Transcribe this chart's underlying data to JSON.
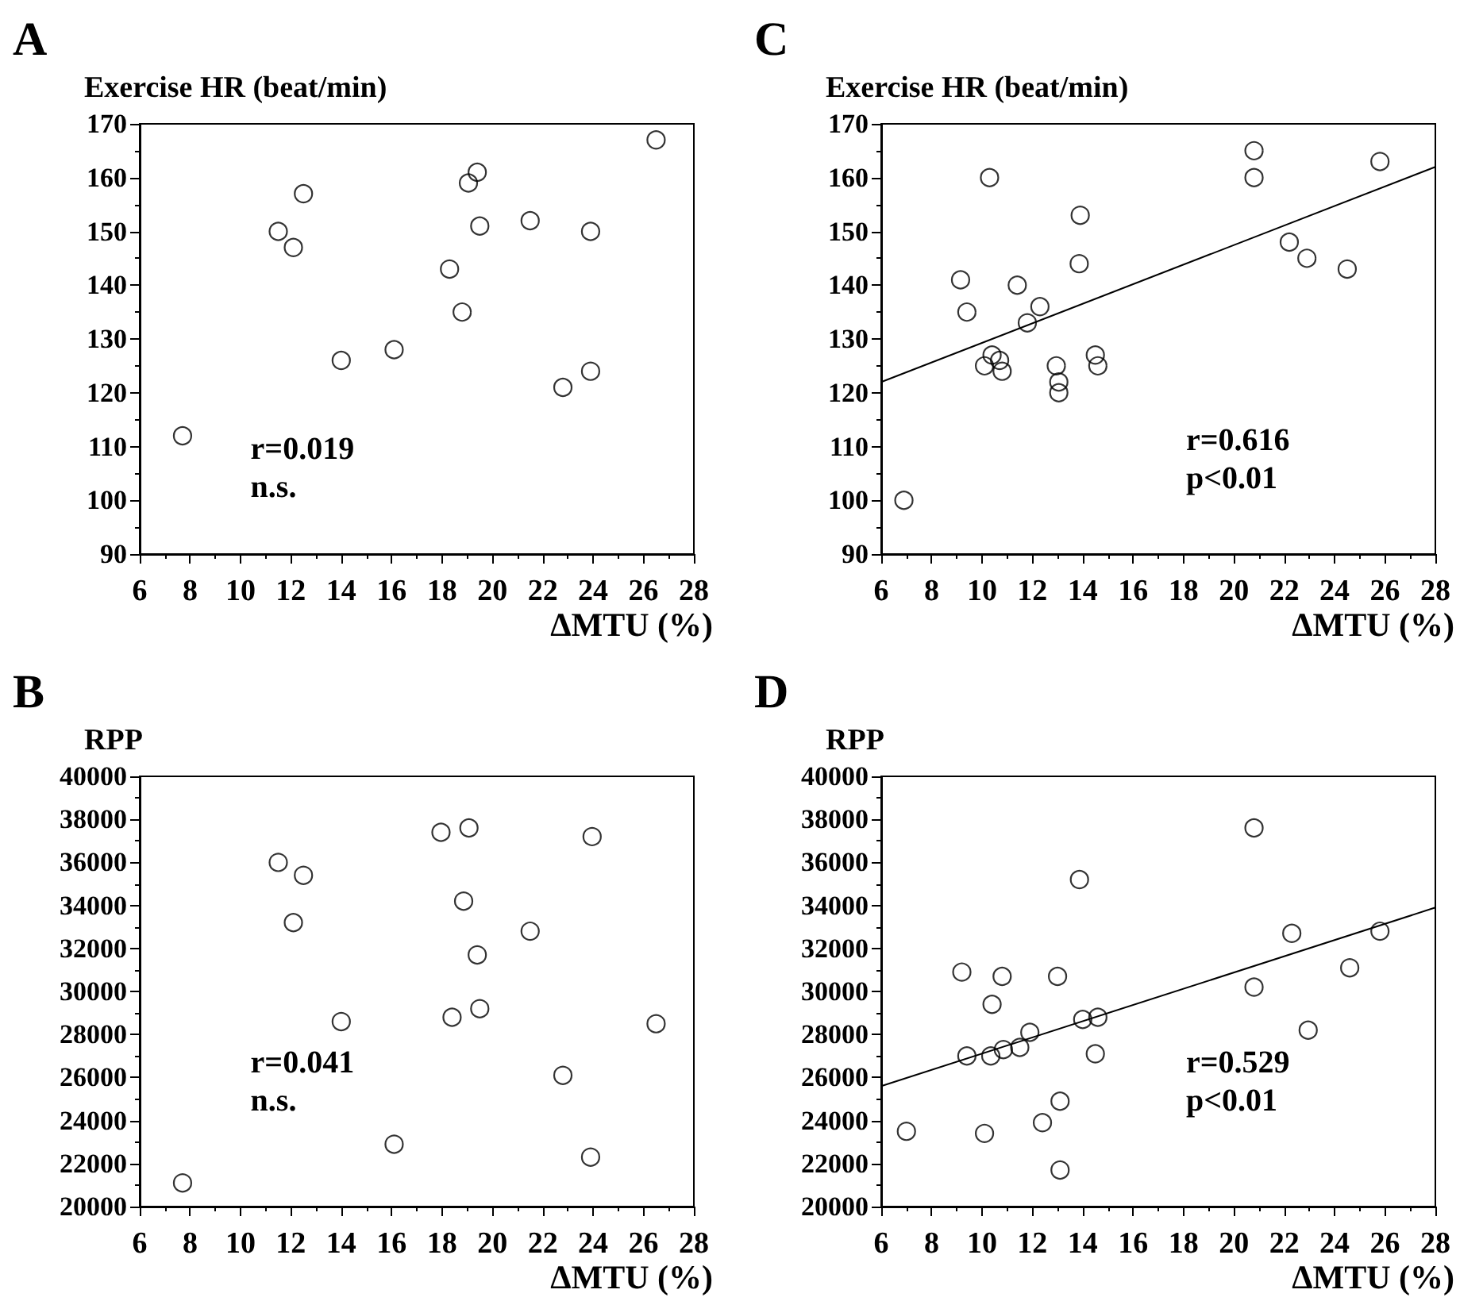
{
  "chart_data": [
    {
      "type": "scatter",
      "title": "A",
      "ylabel": "Exercise HR (beat/min)",
      "xlabel": "ΔMTU (%)",
      "xlim": [
        6,
        28
      ],
      "xticks": [
        6,
        8,
        10,
        12,
        14,
        16,
        18,
        20,
        22,
        24,
        26,
        28
      ],
      "ylim": [
        90,
        170
      ],
      "yticks": [
        90,
        100,
        110,
        120,
        130,
        140,
        150,
        160,
        170
      ],
      "grid": false,
      "annotations": [
        "r=0.019",
        "n.s."
      ],
      "series": [
        {
          "color": "#000000",
          "marker": "circle",
          "x": [
            7.7,
            11.5,
            12.1,
            12.5,
            14.0,
            16.1,
            18.3,
            18.8,
            19.05,
            19.4,
            19.5,
            21.5,
            22.8,
            23.9,
            23.9,
            26.5
          ],
          "values": [
            112,
            150,
            147,
            157,
            126,
            128,
            143,
            135,
            159,
            161,
            151,
            152,
            121,
            124,
            150,
            167
          ]
        }
      ]
    },
    {
      "type": "scatter",
      "title": "C",
      "ylabel": "Exercise HR (beat/min)",
      "xlabel": "ΔMTU (%)",
      "xlim": [
        6,
        28
      ],
      "xticks": [
        6,
        8,
        10,
        12,
        14,
        16,
        18,
        20,
        22,
        24,
        26,
        28
      ],
      "ylim": [
        90,
        170
      ],
      "yticks": [
        90,
        100,
        110,
        120,
        130,
        140,
        150,
        160,
        170
      ],
      "grid": false,
      "annotations": [
        "r=0.616",
        "p<0.01"
      ],
      "series": [
        {
          "color": "#000000",
          "marker": "circle",
          "x": [
            6.9,
            9.15,
            9.4,
            10.3,
            10.1,
            10.4,
            10.7,
            10.8,
            11.4,
            11.8,
            12.3,
            12.95,
            13.05,
            13.05,
            13.9,
            13.86,
            14.5,
            14.6,
            20.8,
            20.8,
            22.2,
            22.9,
            24.5,
            25.8
          ],
          "values": [
            100,
            141,
            135,
            160,
            125,
            127,
            126,
            124,
            140,
            133,
            136,
            125,
            122,
            120,
            153,
            144,
            127,
            125,
            165,
            160,
            148,
            145,
            143,
            163
          ]
        },
        {
          "type": "line",
          "color": "#000000",
          "marker": "none",
          "line_style": "solid",
          "x": [
            6,
            28
          ],
          "values": [
            122,
            162
          ]
        }
      ]
    },
    {
      "type": "scatter",
      "title": "B",
      "ylabel": "RPP",
      "xlabel": "ΔMTU (%)",
      "xlim": [
        6,
        28
      ],
      "xticks": [
        6,
        8,
        10,
        12,
        14,
        16,
        18,
        20,
        22,
        24,
        26,
        28
      ],
      "ylim": [
        20000,
        40000
      ],
      "yticks": [
        20000,
        22000,
        24000,
        26000,
        28000,
        30000,
        32000,
        34000,
        36000,
        38000,
        40000
      ],
      "grid": false,
      "annotations": [
        "r=0.041",
        "n.s."
      ],
      "series": [
        {
          "color": "#000000",
          "marker": "circle",
          "x": [
            7.7,
            11.5,
            12.1,
            12.5,
            14.0,
            16.1,
            17.96,
            19.07,
            18.86,
            19.4,
            18.4,
            19.5,
            21.5,
            22.8,
            23.96,
            23.9,
            26.5
          ],
          "values": [
            21100,
            36000,
            33200,
            35400,
            28600,
            22900,
            37400,
            37600,
            34200,
            31700,
            28800,
            29200,
            32800,
            26100,
            37200,
            22300,
            28500
          ]
        }
      ]
    },
    {
      "type": "scatter",
      "title": "D",
      "ylabel": "RPP",
      "xlabel": "ΔMTU (%)",
      "xlim": [
        6,
        28
      ],
      "xticks": [
        6,
        8,
        10,
        12,
        14,
        16,
        18,
        20,
        22,
        24,
        26,
        28
      ],
      "ylim": [
        20000,
        40000
      ],
      "yticks": [
        20000,
        22000,
        24000,
        26000,
        28000,
        30000,
        32000,
        34000,
        36000,
        38000,
        40000
      ],
      "grid": false,
      "annotations": [
        "r=0.529",
        "p<0.01"
      ],
      "series": [
        {
          "color": "#000000",
          "marker": "circle",
          "x": [
            7.0,
            9.2,
            9.4,
            10.1,
            10.35,
            10.4,
            10.8,
            10.85,
            11.5,
            11.9,
            12.4,
            13.0,
            13.1,
            13.1,
            13.87,
            14.0,
            14.6,
            14.5,
            20.8,
            20.8,
            22.3,
            22.95,
            24.6,
            25.8
          ],
          "values": [
            23500,
            30900,
            27000,
            23400,
            27000,
            29400,
            30700,
            27300,
            27400,
            28100,
            23900,
            30700,
            24900,
            21700,
            35200,
            28700,
            28800,
            27100,
            37600,
            30200,
            32700,
            28200,
            31100,
            32800
          ]
        },
        {
          "type": "line",
          "color": "#000000",
          "marker": "none",
          "line_style": "solid",
          "x": [
            6,
            28
          ],
          "values": [
            25600,
            33900
          ]
        }
      ]
    }
  ]
}
